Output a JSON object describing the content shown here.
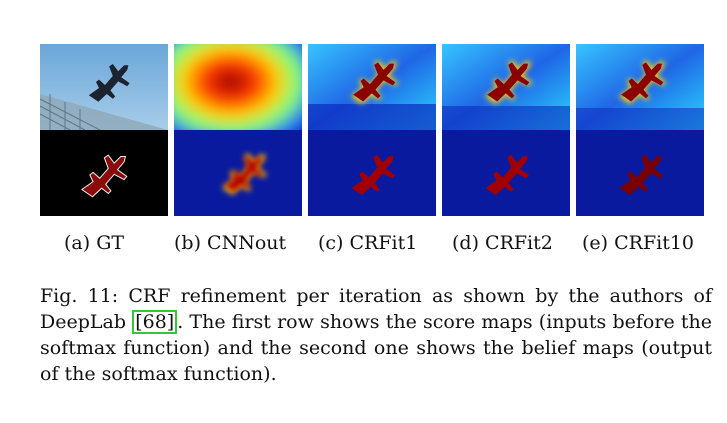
{
  "figure": {
    "columns": [
      {
        "id": "gt",
        "label": "(a) GT",
        "top": "photo-airplane",
        "bottom": "mask-airplane"
      },
      {
        "id": "cnnout",
        "label": "(b) CNNout",
        "top": "score-map",
        "bottom": "belief-map"
      },
      {
        "id": "crfit1",
        "label": "(c) CRFit1",
        "top": "score-map",
        "bottom": "belief-map"
      },
      {
        "id": "crfit2",
        "label": "(d) CRFit2",
        "top": "score-map",
        "bottom": "belief-map"
      },
      {
        "id": "crfit10",
        "label": "(e) CRFit10",
        "top": "score-map",
        "bottom": "belief-map"
      }
    ]
  },
  "caption": {
    "prefix": "Fig. 11: CRF refinement per iteration as shown by the authors of DeepLab ",
    "citation": "[68]",
    "suffix": ". The first row shows the score maps (inputs before the softmax function) and the second one shows the belief maps (output of the softmax function)."
  }
}
